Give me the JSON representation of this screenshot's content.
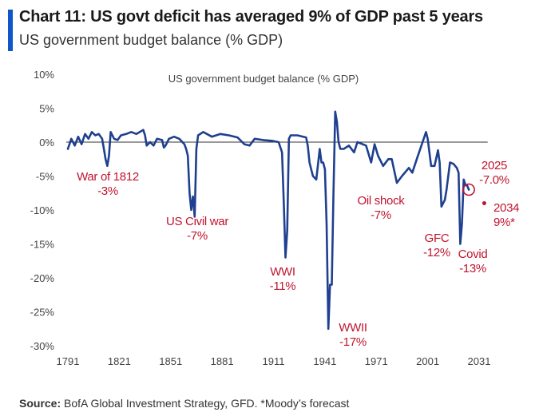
{
  "header": {
    "title": "Chart 11: US govt deficit has averaged 9% of GDP past 5 years",
    "subtitle": "US government budget balance (% GDP)"
  },
  "footer": {
    "source_label": "Source:",
    "source_text": "BofA Global Investment Strategy, GFD. *Moody’s forecast"
  },
  "colors": {
    "line": "#1f3f8f",
    "annotation": "#c0142e",
    "accent": "#0f57c9",
    "axis_text": "#444444"
  },
  "chart_data": {
    "type": "line",
    "title": "US government budget balance (% GDP)",
    "xlabel": "",
    "ylabel": "",
    "xlim": [
      1791,
      2036
    ],
    "ylim": [
      -30,
      10
    ],
    "x_ticks": [
      1791,
      1821,
      1851,
      1881,
      1911,
      1941,
      1971,
      2001,
      2031
    ],
    "y_ticks": [
      10,
      5,
      0,
      -5,
      -10,
      -15,
      -20,
      -25,
      -30
    ],
    "y_tick_labels": [
      "10%",
      "5%",
      "0%",
      "-5%",
      "-10%",
      "-15%",
      "-20%",
      "-25%",
      "-30%"
    ],
    "x_tick_labels": [
      "1791",
      "1821",
      "1851",
      "1881",
      "1911",
      "1941",
      "1971",
      "2001",
      "2031"
    ],
    "grid": false,
    "zero_line": true,
    "series": [
      {
        "x": [
          1791,
          1793,
          1795,
          1797,
          1799,
          1801,
          1803,
          1805,
          1807,
          1809,
          1811,
          1812,
          1813,
          1814,
          1815,
          1816,
          1818,
          1820,
          1822,
          1825,
          1828,
          1831,
          1833,
          1835,
          1836,
          1837,
          1839,
          1841,
          1843,
          1846,
          1847,
          1848,
          1850,
          1853,
          1856,
          1859,
          1860,
          1861,
          1862,
          1863,
          1864,
          1865,
          1866,
          1867,
          1870,
          1875,
          1880,
          1885,
          1890,
          1894,
          1897,
          1900,
          1905,
          1910,
          1914,
          1916,
          1917,
          1918,
          1919,
          1920,
          1921,
          1925,
          1930,
          1931,
          1932,
          1933,
          1934,
          1936,
          1938,
          1939,
          1940,
          1941,
          1942,
          1943,
          1944,
          1945,
          1946,
          1947,
          1948,
          1949,
          1950,
          1952,
          1955,
          1958,
          1960,
          1965,
          1968,
          1970,
          1972,
          1975,
          1978,
          1980,
          1983,
          1986,
          1990,
          1992,
          1995,
          1998,
          2000,
          2001,
          2003,
          2005,
          2007,
          2008,
          2009,
          2010,
          2011,
          2012,
          2014,
          2016,
          2018,
          2019,
          2020,
          2021,
          2022,
          2023,
          2024,
          2025
        ],
        "y": [
          -1,
          0.5,
          -0.5,
          0.8,
          -0.3,
          1.2,
          0.5,
          1.5,
          1,
          1.2,
          0.5,
          -1,
          -2.5,
          -3.5,
          -2,
          1.5,
          0.5,
          0.3,
          1,
          1.2,
          1.5,
          1.2,
          1.5,
          1.8,
          1,
          -0.5,
          0,
          -0.5,
          0.5,
          0.3,
          -0.8,
          -0.5,
          0.5,
          0.8,
          0.5,
          -0.3,
          -1,
          -2,
          -7.5,
          -10,
          -8,
          -11,
          -1,
          1,
          1.5,
          0.8,
          1.2,
          1,
          0.7,
          -0.3,
          -0.5,
          0.5,
          0.3,
          0.2,
          0,
          -1.5,
          -9,
          -17,
          -13,
          0.5,
          1,
          1,
          0.7,
          -0.5,
          -3,
          -4,
          -5,
          -5.5,
          -1,
          -3,
          -3,
          -4,
          -12,
          -27.5,
          -21,
          -21,
          -7.5,
          4.5,
          3,
          0,
          -1,
          -1,
          -0.5,
          -1.5,
          0,
          -0.5,
          -3,
          -0.3,
          -2,
          -3.5,
          -2.5,
          -2.5,
          -6,
          -5,
          -3.8,
          -4.5,
          -2.2,
          0,
          1.5,
          0.5,
          -3.5,
          -3.5,
          -1.2,
          -3,
          -9.5,
          -9,
          -8.5,
          -7,
          -3,
          -3.2,
          -3.8,
          -4.5,
          -15,
          -12,
          -5.5,
          -6.3,
          -6.4,
          -7
        ]
      }
    ],
    "forecast_point": {
      "x": 2034,
      "y": -9
    },
    "highlight_point": {
      "x": 2025,
      "y": -7
    },
    "annotations": [
      {
        "label": "War of 1812",
        "value": "-3%",
        "x": 1812,
        "y": -3
      },
      {
        "label": "US Civil war",
        "value": "-7%",
        "x": 1865,
        "y": -11
      },
      {
        "label": "WWI",
        "value": "-11%",
        "x": 1918,
        "y": -17
      },
      {
        "label": "WWII",
        "value": "-17%",
        "x": 1943,
        "y": -27.5
      },
      {
        "label": "Oil shock",
        "value": "-7%",
        "x": 1975,
        "y": -3.5
      },
      {
        "label": "GFC",
        "value": "-12%",
        "x": 2009,
        "y": -9.5
      },
      {
        "label": "Covid",
        "value": "-13%",
        "x": 2020,
        "y": -15
      },
      {
        "label": "2025",
        "value": "-7.0%",
        "x": 2025,
        "y": -7
      },
      {
        "label": "2034",
        "value": "9%*",
        "x": 2034,
        "y": -9
      }
    ]
  }
}
